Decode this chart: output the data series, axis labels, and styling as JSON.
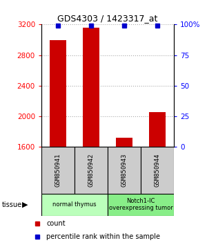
{
  "title": "GDS4303 / 1423317_at",
  "samples": [
    "GSM850941",
    "GSM850942",
    "GSM850943",
    "GSM850944"
  ],
  "count_values": [
    3000,
    3160,
    1720,
    2055
  ],
  "percentile_values": [
    99,
    99,
    99,
    99
  ],
  "ylim_left": [
    1600,
    3200
  ],
  "ylim_right": [
    0,
    100
  ],
  "yticks_left": [
    1600,
    2000,
    2400,
    2800,
    3200
  ],
  "yticks_right": [
    0,
    25,
    50,
    75,
    100
  ],
  "ytick_labels_right": [
    "0",
    "25",
    "50",
    "75",
    "100%"
  ],
  "bar_color": "#cc0000",
  "dot_color": "#0000cc",
  "tissue_groups": [
    {
      "label": "normal thymus",
      "indices": [
        0,
        1
      ],
      "color": "#bbffbb"
    },
    {
      "label": "Notch1-IC\noverexpressing tumor",
      "indices": [
        2,
        3
      ],
      "color": "#88ee88"
    }
  ],
  "sample_box_color": "#cccccc",
  "legend_count_color": "#cc0000",
  "legend_dot_color": "#0000cc",
  "background_color": "#ffffff",
  "bar_width": 0.5,
  "tissue_arrow_label": "tissue"
}
